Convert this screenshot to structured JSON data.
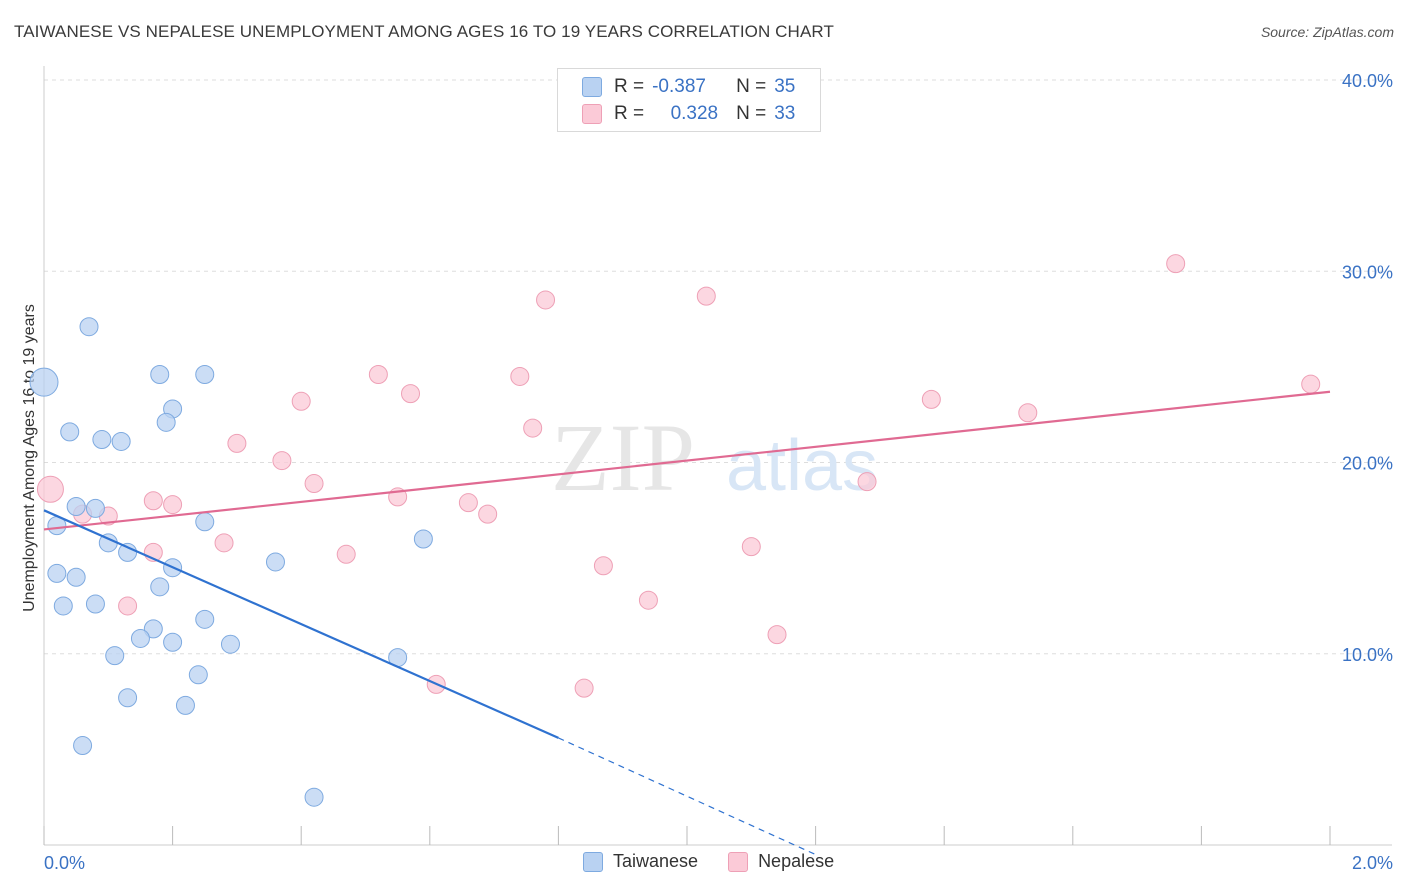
{
  "title": "TAIWANESE VS NEPALESE UNEMPLOYMENT AMONG AGES 16 TO 19 YEARS CORRELATION CHART",
  "source": "Source: ZipAtlas.com",
  "watermark": {
    "zip": "ZIP",
    "atlas": "atlas"
  },
  "legend": {
    "rows": [
      {
        "r_label": "R =",
        "r_value": "-0.387",
        "n_label": "N =",
        "n_value": "35"
      },
      {
        "r_label": "R =",
        "r_value": "0.328",
        "n_label": "N =",
        "n_value": "33"
      }
    ]
  },
  "colors": {
    "taiwanese_fill": "#b9d2f2",
    "taiwanese_stroke": "#7eaae0",
    "taiwanese_line": "#2f72d0",
    "nepalese_fill": "#fbcad7",
    "nepalese_stroke": "#eea0b6",
    "nepalese_line": "#e06a92",
    "tick_text": "#3a72c4",
    "grid": "#dddddd"
  },
  "chart_data": {
    "type": "scatter",
    "title": "TAIWANESE VS NEPALESE UNEMPLOYMENT AMONG AGES 16 TO 19 YEARS CORRELATION CHART",
    "xlabel": "",
    "ylabel": "Unemployment Among Ages 16 to 19 years",
    "xlim": [
      0,
      2.0
    ],
    "ylim": [
      0,
      40
    ],
    "x_tick_labels": [
      "0.0%",
      "2.0%"
    ],
    "y_ticks": [
      10,
      20,
      30,
      40
    ],
    "y_tick_labels": [
      "10.0%",
      "20.0%",
      "30.0%",
      "40.0%"
    ],
    "grid": true,
    "legend_position": "bottom-center",
    "series": [
      {
        "name": "Taiwanese",
        "points": [
          [
            0.0,
            24.2,
            14
          ],
          [
            0.04,
            21.6,
            9
          ],
          [
            0.07,
            27.1,
            9
          ],
          [
            0.09,
            21.2,
            9
          ],
          [
            0.12,
            21.1,
            9
          ],
          [
            0.18,
            24.6,
            9
          ],
          [
            0.25,
            24.6,
            9
          ],
          [
            0.2,
            22.8,
            9
          ],
          [
            0.19,
            22.1,
            9
          ],
          [
            0.05,
            17.7,
            9
          ],
          [
            0.08,
            17.6,
            9
          ],
          [
            0.02,
            16.7,
            9
          ],
          [
            0.1,
            15.8,
            9
          ],
          [
            0.13,
            15.3,
            9
          ],
          [
            0.25,
            16.9,
            9
          ],
          [
            0.02,
            14.2,
            9
          ],
          [
            0.05,
            14.0,
            9
          ],
          [
            0.2,
            14.5,
            9
          ],
          [
            0.18,
            13.5,
            9
          ],
          [
            0.36,
            14.8,
            9
          ],
          [
            0.59,
            16.0,
            9
          ],
          [
            0.03,
            12.5,
            9
          ],
          [
            0.08,
            12.6,
            9
          ],
          [
            0.25,
            11.8,
            9
          ],
          [
            0.17,
            11.3,
            9
          ],
          [
            0.2,
            10.6,
            9
          ],
          [
            0.15,
            10.8,
            9
          ],
          [
            0.11,
            9.9,
            9
          ],
          [
            0.29,
            10.5,
            9
          ],
          [
            0.55,
            9.8,
            9
          ],
          [
            0.24,
            8.9,
            9
          ],
          [
            0.13,
            7.7,
            9
          ],
          [
            0.22,
            7.3,
            9
          ],
          [
            0.06,
            5.2,
            9
          ],
          [
            0.42,
            2.5,
            9
          ]
        ],
        "trend": {
          "x": [
            0.0,
            0.8
          ],
          "y": [
            17.5,
            5.6
          ],
          "dashed_to": [
            1.2,
            -0.5
          ]
        }
      },
      {
        "name": "Nepalese",
        "points": [
          [
            0.01,
            18.6,
            13
          ],
          [
            0.06,
            17.3,
            9
          ],
          [
            0.1,
            17.2,
            9
          ],
          [
            0.17,
            18.0,
            9
          ],
          [
            0.2,
            17.8,
            9
          ],
          [
            0.17,
            15.3,
            9
          ],
          [
            0.13,
            12.5,
            9
          ],
          [
            0.28,
            15.8,
            9
          ],
          [
            0.3,
            21.0,
            9
          ],
          [
            0.37,
            20.1,
            9
          ],
          [
            0.4,
            23.2,
            9
          ],
          [
            0.42,
            18.9,
            9
          ],
          [
            0.47,
            15.2,
            9
          ],
          [
            0.52,
            24.6,
            9
          ],
          [
            0.55,
            18.2,
            9
          ],
          [
            0.57,
            23.6,
            9
          ],
          [
            0.61,
            8.4,
            9
          ],
          [
            0.66,
            17.9,
            9
          ],
          [
            0.69,
            17.3,
            9
          ],
          [
            0.74,
            24.5,
            9
          ],
          [
            0.76,
            21.8,
            9
          ],
          [
            0.78,
            28.5,
            9
          ],
          [
            0.84,
            8.2,
            9
          ],
          [
            0.87,
            14.6,
            9
          ],
          [
            0.94,
            12.8,
            9
          ],
          [
            1.03,
            28.7,
            9
          ],
          [
            1.1,
            15.6,
            9
          ],
          [
            1.14,
            11.0,
            9
          ],
          [
            1.28,
            19.0,
            9
          ],
          [
            1.38,
            23.3,
            9
          ],
          [
            1.53,
            22.6,
            9
          ],
          [
            1.76,
            30.4,
            9
          ],
          [
            1.97,
            24.1,
            9
          ]
        ],
        "trend": {
          "x": [
            0.0,
            2.0
          ],
          "y": [
            16.5,
            23.7
          ]
        }
      }
    ]
  },
  "bottom_legend": [
    {
      "label": "Taiwanese"
    },
    {
      "label": "Nepalese"
    }
  ]
}
